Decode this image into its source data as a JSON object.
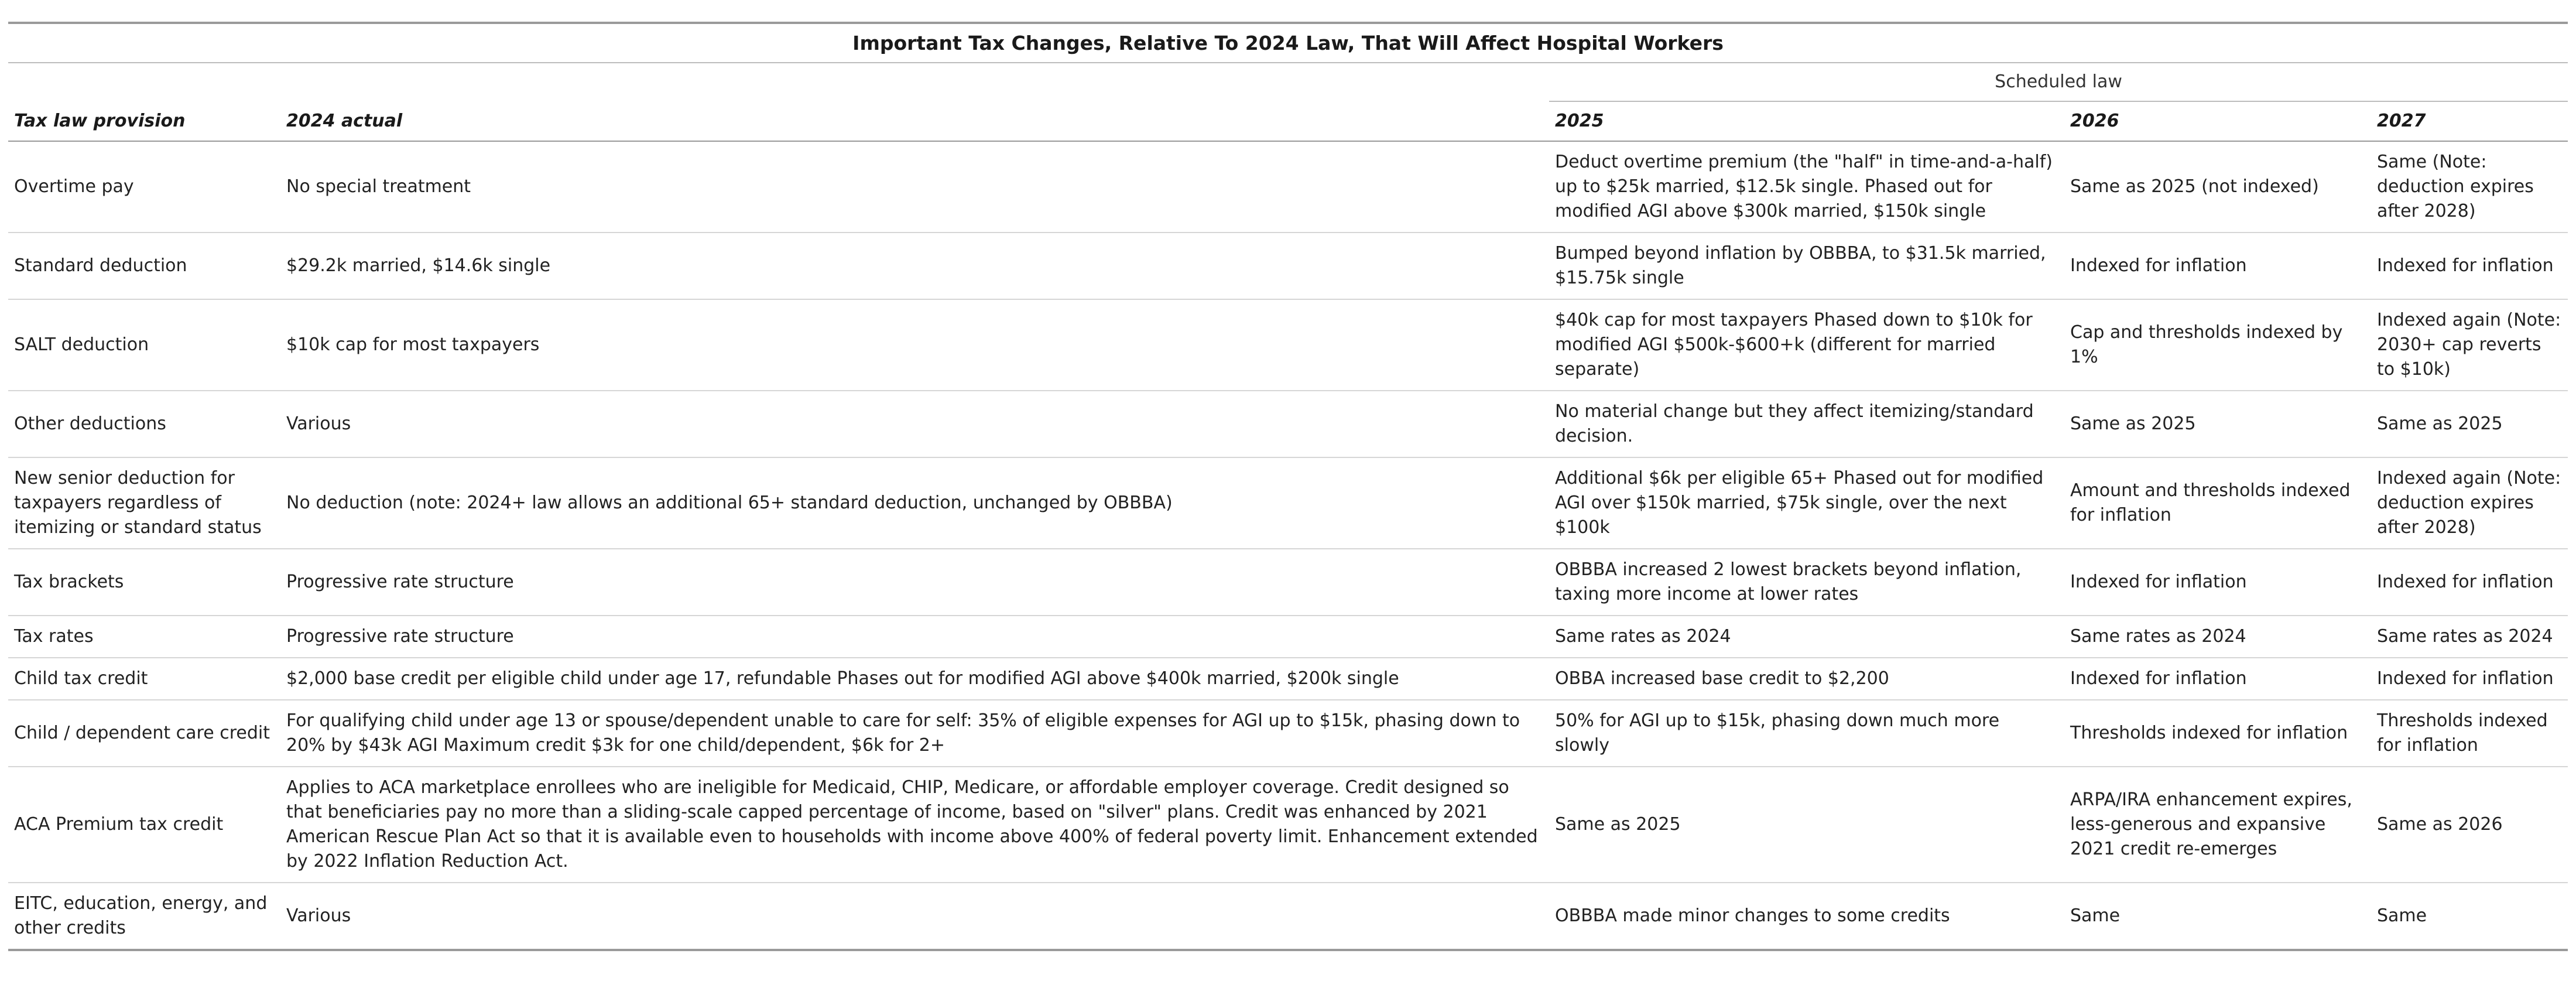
{
  "table": {
    "title": "Important Tax Changes, Relative To 2024 Law, That Will Affect Hospital Workers",
    "spanner": "Scheduled law",
    "headers": [
      "Tax law provision",
      "2024 actual",
      "2025",
      "2026",
      "2027"
    ],
    "rows": [
      [
        "Overtime pay",
        "No special treatment",
        "Deduct overtime premium (the \"half\" in time-and-a-half) up to $25k married, $12.5k single. Phased out for modified AGI above $300k married, $150k single",
        "Same as 2025 (not indexed)",
        "Same (Note: deduction expires after 2028)"
      ],
      [
        "Standard deduction",
        "$29.2k married, $14.6k single",
        "Bumped beyond inflation by OBBBA, to $31.5k married, $15.75k single",
        "Indexed for inflation",
        "Indexed for inflation"
      ],
      [
        "SALT deduction",
        "$10k cap for most taxpayers",
        "$40k cap for most taxpayers Phased down to $10k for modified AGI $500k-$600+k (different for married separate)",
        "Cap and thresholds indexed by 1%",
        "Indexed again (Note: 2030+ cap reverts to $10k)"
      ],
      [
        "Other deductions",
        "Various",
        "No material change but they affect itemizing/standard decision.",
        "Same as 2025",
        "Same as 2025"
      ],
      [
        "New senior deduction for taxpayers regardless of itemizing or standard status",
        "No deduction (note: 2024+ law allows an additional 65+ standard deduction, unchanged by OBBBA)",
        "Additional $6k per eligible 65+ Phased out for modified AGI over $150k married, $75k single, over the next $100k",
        "Amount and thresholds indexed for inflation",
        "Indexed again (Note: deduction expires after 2028)"
      ],
      [
        "Tax brackets",
        "Progressive rate structure",
        "OBBBA increased 2 lowest brackets beyond inflation, taxing more income at lower rates",
        "Indexed for inflation",
        "Indexed for inflation"
      ],
      [
        "Tax rates",
        "Progressive rate structure",
        "Same rates as 2024",
        "Same rates as 2024",
        "Same rates as 2024"
      ],
      [
        "Child tax credit",
        "$2,000 base credit per eligible child under age 17, refundable Phases out for modified AGI above $400k married, $200k single",
        "OBBA increased base credit to $2,200",
        "Indexed for inflation",
        "Indexed for inflation"
      ],
      [
        "Child / dependent care credit",
        "For qualifying child under age 13 or spouse/dependent unable to care for self: 35% of eligible expenses for AGI up to $15k, phasing down to 20% by $43k AGI Maximum credit $3k for one child/dependent, $6k for 2+",
        "50% for AGI up to $15k, phasing down much more slowly",
        "Thresholds indexed for inflation",
        "Thresholds indexed for inflation"
      ],
      [
        "ACA Premium tax credit",
        "Applies to ACA marketplace enrollees who are ineligible for Medicaid, CHIP, Medicare, or affordable employer coverage. Credit designed so that beneficiaries pay no more than a sliding-scale capped percentage of income, based on \"silver\" plans. Credit was enhanced by 2021 American Rescue Plan Act so that it is available even to households with income above 400% of federal poverty limit. Enhancement extended by 2022 Inflation Reduction Act.",
        "Same as 2025",
        "ARPA/IRA enhancement expires, less-generous and expansive 2021 credit re-emerges",
        "Same as 2026"
      ],
      [
        "EITC, education, energy, and other credits",
        "Various",
        "OBBBA made minor changes to some credits",
        "Same",
        "Same"
      ]
    ]
  }
}
